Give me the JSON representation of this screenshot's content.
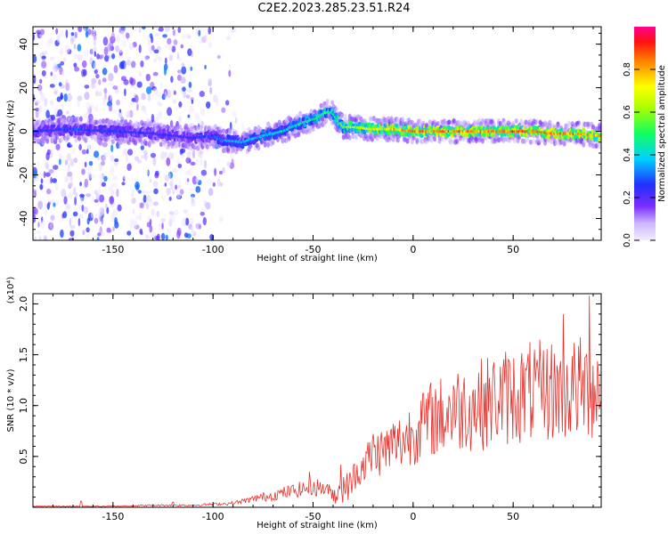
{
  "page": {
    "title": "C2E2.2023.285.23.51.R24"
  },
  "colors": {
    "snr_line": "#e8302a",
    "axis": "#000000"
  },
  "chart_data": [
    {
      "type": "heatmap",
      "xlabel": "Height of straight line (km)",
      "ylabel": "Frequency (Hz)",
      "xlim": [
        -190,
        94
      ],
      "ylim": [
        -50,
        48
      ],
      "xticks": [
        -150,
        -100,
        -50,
        0,
        50
      ],
      "yticks": [
        -40,
        -20,
        0,
        20,
        40
      ],
      "colorbar": {
        "label": "Normalized spectral amplitude",
        "range": [
          0,
          1
        ],
        "ticks": [
          "0.0",
          "0.2",
          "0.4",
          "0.6",
          "0.8"
        ],
        "colormap": "rainbow (lavender → violet → blue → cyan → green → yellow → red → pink)"
      },
      "ridge": {
        "x": [
          -190,
          -170,
          -150,
          -130,
          -110,
          -100,
          -95,
          -85,
          -75,
          -65,
          -55,
          -48,
          -45,
          -42,
          -40,
          -35,
          -30,
          -20,
          -10,
          0,
          10,
          20,
          30,
          40,
          50,
          60,
          70,
          80,
          94
        ],
        "y": [
          0,
          1,
          0,
          -1,
          -3,
          -2,
          -4,
          -5,
          -2,
          0,
          4,
          6,
          8,
          9,
          8,
          2,
          2,
          1,
          1,
          0,
          0,
          0,
          0,
          0,
          0,
          0,
          -1,
          -1,
          -2
        ],
        "amplitude": [
          0.25,
          0.3,
          0.28,
          0.25,
          0.25,
          0.3,
          0.35,
          0.38,
          0.4,
          0.42,
          0.45,
          0.5,
          0.55,
          0.55,
          0.5,
          0.6,
          0.7,
          0.75,
          0.8,
          0.85,
          0.9,
          0.88,
          0.85,
          0.85,
          0.9,
          0.9,
          0.88,
          0.85,
          0.82
        ]
      },
      "noise_extent_x": [
        -190,
        -85
      ]
    },
    {
      "type": "line",
      "xlabel": "Height of straight line (km)",
      "ylabel": "SNR (10 * v/v)",
      "yscale_label": "(x10⁴)",
      "xlim": [
        -190,
        94
      ],
      "ylim": [
        0,
        2.1
      ],
      "xticks": [
        -150,
        -100,
        -50,
        0,
        50
      ],
      "yticks": [
        0.5,
        1.0,
        1.5,
        2.0
      ],
      "series": [
        {
          "envelope_x": [
            -190,
            -170,
            -150,
            -130,
            -110,
            -100,
            -90,
            -80,
            -70,
            -60,
            -50,
            -45,
            -40,
            -35,
            -30,
            -25,
            -20,
            -15,
            -10,
            -5,
            0,
            5,
            10,
            15,
            20,
            25,
            30,
            35,
            40,
            45,
            50,
            55,
            60,
            65,
            70,
            75,
            80,
            85,
            90,
            94
          ],
          "envelope_y": [
            0.01,
            0.01,
            0.01,
            0.02,
            0.02,
            0.03,
            0.04,
            0.08,
            0.12,
            0.16,
            0.2,
            0.19,
            0.14,
            0.22,
            0.3,
            0.42,
            0.52,
            0.56,
            0.6,
            0.66,
            0.75,
            0.82,
            0.88,
            0.9,
            0.95,
            0.98,
            1.0,
            1.02,
            1.05,
            1.08,
            1.1,
            1.12,
            1.14,
            1.14,
            1.15,
            1.15,
            1.16,
            1.17,
            1.17,
            1.17
          ],
          "spikes": [
            [
              -166,
              0.06
            ],
            [
              -120,
              0.05
            ],
            [
              -78,
              0.12
            ],
            [
              -52,
              0.35
            ],
            [
              -36,
              0.42
            ],
            [
              -20,
              0.72
            ],
            [
              -10,
              0.82
            ],
            [
              5,
              1.12
            ],
            [
              20,
              1.2
            ],
            [
              45,
              1.35
            ],
            [
              62,
              1.45
            ],
            [
              75,
              1.9
            ],
            [
              88,
              2.08
            ]
          ]
        }
      ]
    }
  ]
}
